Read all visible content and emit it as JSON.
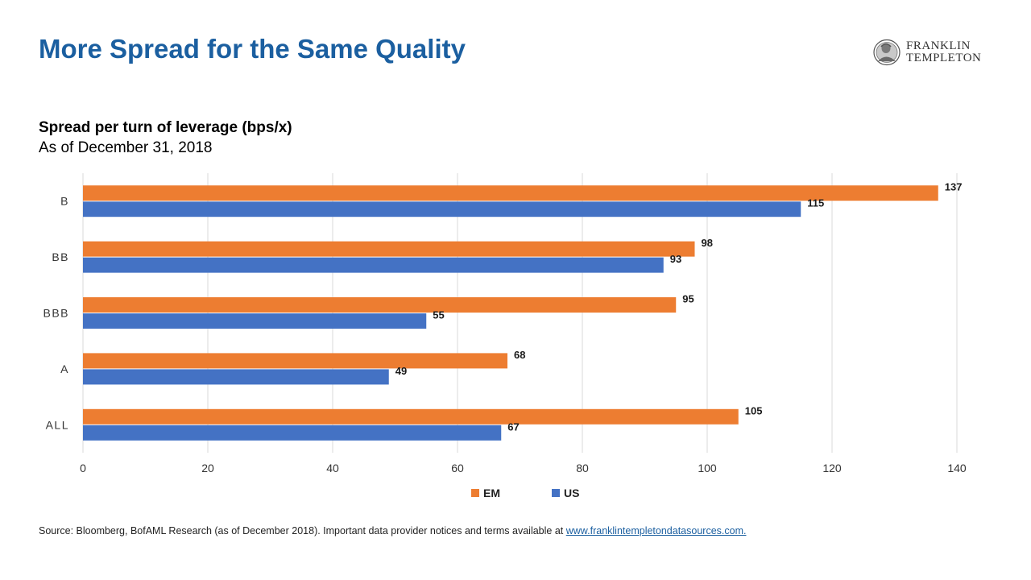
{
  "header": {
    "title": "More Spread for the Same Quality",
    "logo": {
      "line1": "FRANKLIN",
      "line2": "TEMPLETON",
      "icon": "franklin-portrait-icon"
    }
  },
  "colors": {
    "title": "#1b5fa0",
    "em": "#ed7d31",
    "us": "#4472c4",
    "grid": "#d9d9d9"
  },
  "chart_data": {
    "type": "bar",
    "orientation": "horizontal",
    "title": "Spread per turn of leverage (bps/x)",
    "subtitle": "As of December 31, 2018",
    "categories": [
      "B",
      "BB",
      "BBB",
      "A",
      "ALL"
    ],
    "series": [
      {
        "name": "EM",
        "color": "#ed7d31",
        "values": [
          137,
          98,
          95,
          68,
          105
        ]
      },
      {
        "name": "US",
        "color": "#4472c4",
        "values": [
          115,
          93,
          55,
          49,
          67
        ]
      }
    ],
    "xlim": [
      0,
      140
    ],
    "xticks": [
      0,
      20,
      40,
      60,
      80,
      100,
      120,
      140
    ],
    "grid": true,
    "legend": "bottom-center"
  },
  "footer": {
    "source": "Source: Bloomberg, BofAML Research (as of December 2018). Important data provider notices and terms available at",
    "link": "www.franklintempletondatasources.com."
  }
}
